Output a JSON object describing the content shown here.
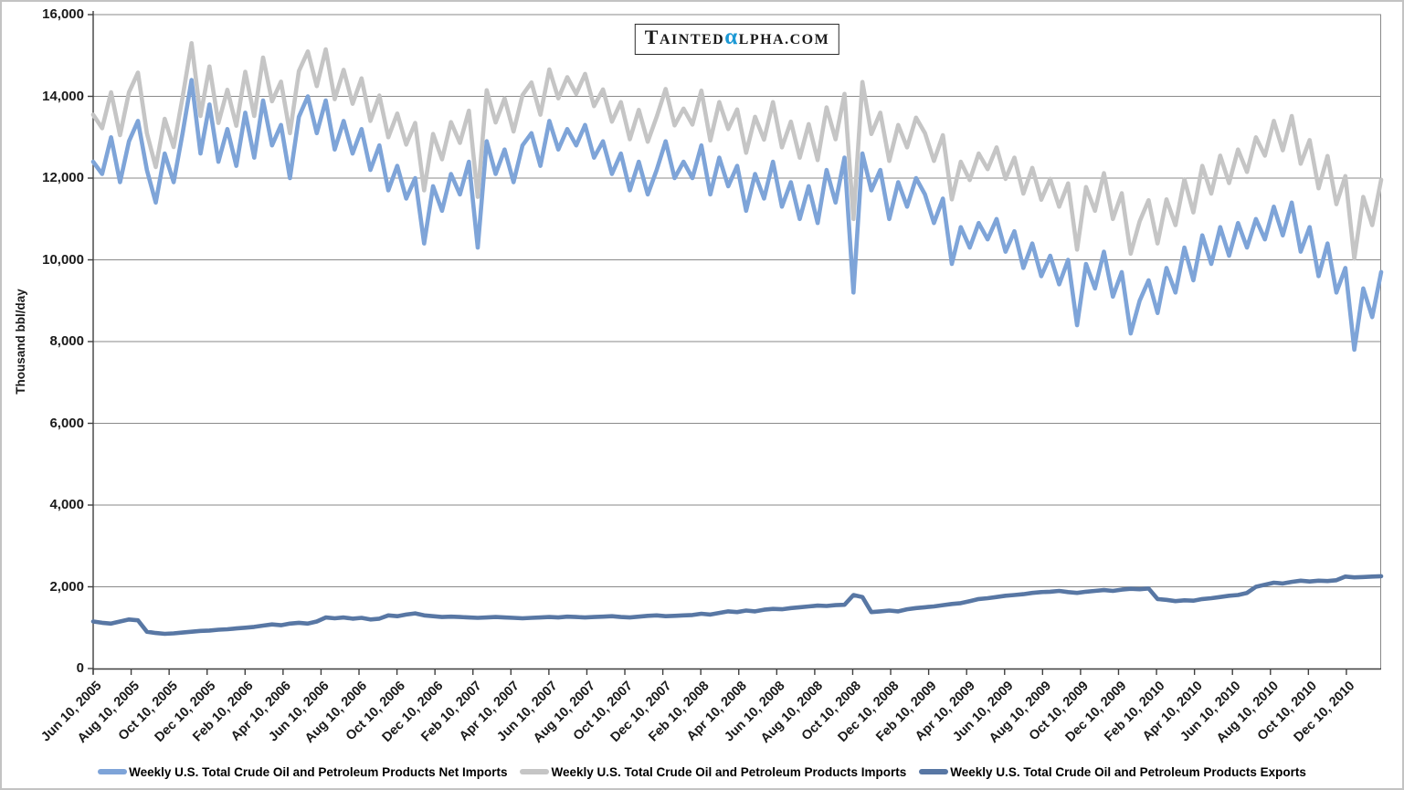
{
  "logo": {
    "first_letter": "T",
    "name_rest": "AINTED",
    "alpha": "α",
    "domain_rest": "LPHA.COM",
    "alpha_color": "#1C99D5"
  },
  "y_axis": {
    "title": "Thousand bbl/day",
    "tick_labels": [
      "0",
      "2,000",
      "4,000",
      "6,000",
      "8,000",
      "10,000",
      "12,000",
      "14,000",
      "16,000"
    ]
  },
  "x_axis": {
    "tick_labels": [
      "Jun 10, 2005",
      "Aug 10, 2005",
      "Oct 10, 2005",
      "Dec 10, 2005",
      "Feb 10, 2006",
      "Apr 10, 2006",
      "Jun 10, 2006",
      "Aug 10, 2006",
      "Oct 10, 2006",
      "Dec 10, 2006",
      "Feb 10, 2007",
      "Apr 10, 2007",
      "Jun 10, 2007",
      "Aug 10, 2007",
      "Oct 10, 2007",
      "Dec 10, 2007",
      "Feb 10, 2008",
      "Apr 10, 2008",
      "Jun 10, 2008",
      "Aug 10, 2008",
      "Oct 10, 2008",
      "Dec 10, 2008",
      "Feb 10, 2009",
      "Apr 10, 2009",
      "Jun 10, 2009",
      "Aug 10, 2009",
      "Oct 10, 2009",
      "Dec 10, 2009",
      "Feb 10, 2010",
      "Apr 10, 2010",
      "Jun 10, 2010",
      "Aug 10, 2010",
      "Oct 10, 2010",
      "Dec 10, 2010"
    ]
  },
  "chart_data": {
    "type": "line",
    "ylabel": "Thousand bbl/day",
    "ylim": [
      0,
      16000
    ],
    "y_step": 2000,
    "grid": "horizontal-only",
    "legend_position": "bottom",
    "x_range": [
      "Jun 10, 2005",
      "Dec 31, 2010"
    ],
    "sampling": "weekly data approximated at biweekly resolution, 145 points per series",
    "z_order": [
      1,
      0,
      2
    ],
    "colors": {
      "grid": "#8a8a8a",
      "axis": "#3f3f3f",
      "text": "#1a1a1a"
    },
    "series": [
      {
        "name": "Weekly U.S. Total Crude Oil and Petroleum Products Net Imports",
        "color": "#7EA4D8",
        "values": [
          12400,
          12100,
          13000,
          11900,
          12900,
          13400,
          12200,
          11400,
          12600,
          11900,
          13100,
          14400,
          12600,
          13800,
          12400,
          13200,
          12300,
          13600,
          12500,
          13900,
          12800,
          13300,
          12000,
          13500,
          14000,
          13100,
          13900,
          12700,
          13400,
          12600,
          13200,
          12200,
          12800,
          11700,
          12300,
          11500,
          12000,
          10400,
          11800,
          11200,
          12100,
          11600,
          12400,
          10300,
          12900,
          12100,
          12700,
          11900,
          12800,
          13100,
          12300,
          13400,
          12700,
          13200,
          12800,
          13300,
          12500,
          12900,
          12100,
          12600,
          11700,
          12400,
          11600,
          12200,
          12900,
          12000,
          12400,
          12000,
          12800,
          11600,
          12500,
          11800,
          12300,
          11200,
          12100,
          11500,
          12400,
          11300,
          11900,
          11000,
          11800,
          10900,
          12200,
          11400,
          12500,
          9200,
          12600,
          11700,
          12200,
          11000,
          11900,
          11300,
          12000,
          11600,
          10900,
          11500,
          9900,
          10800,
          10300,
          10900,
          10500,
          11000,
          10200,
          10700,
          9800,
          10400,
          9600,
          10100,
          9400,
          10000,
          8400,
          9900,
          9300,
          10200,
          9100,
          9700,
          8200,
          9000,
          9500,
          8700,
          9800,
          9200,
          10300,
          9500,
          10600,
          9900,
          10800,
          10100,
          10900,
          10300,
          11000,
          10500,
          11300,
          10600,
          11400,
          10200,
          10800,
          9600,
          10400,
          9200,
          9800,
          7800,
          9300,
          8600,
          9700
        ]
      },
      {
        "name": "Weekly U.S. Total Crude Oil and Petroleum Products Imports",
        "color": "#C5C5C5",
        "values": [
          13550,
          13220,
          14100,
          13050,
          14100,
          14580,
          13100,
          12270,
          13450,
          12760,
          13980,
          15300,
          13520,
          14730,
          13350,
          14160,
          13280,
          14600,
          13520,
          14950,
          13880,
          14360,
          13100,
          14620,
          15100,
          14250,
          15150,
          13930,
          14650,
          13820,
          14440,
          13400,
          14020,
          13000,
          13580,
          12820,
          13350,
          11700,
          13080,
          12460,
          13370,
          12860,
          13650,
          11540,
          14150,
          13360,
          13950,
          13140,
          14030,
          14340,
          13550,
          14660,
          13950,
          14470,
          14060,
          14550,
          13760,
          14170,
          13380,
          13860,
          12950,
          13670,
          12890,
          13500,
          14180,
          13290,
          13700,
          13310,
          14140,
          12920,
          13860,
          13200,
          13680,
          12620,
          13500,
          12940,
          13860,
          12750,
          13380,
          12500,
          13320,
          12440,
          13730,
          12950,
          14060,
          11000,
          14350,
          13080,
          13600,
          12420,
          13300,
          12750,
          13480,
          13100,
          12420,
          13050,
          11480,
          12400,
          11950,
          12600,
          12220,
          12750,
          11980,
          12500,
          11620,
          12250,
          11470,
          11980,
          11300,
          11870,
          10250,
          11780,
          11200,
          12120,
          11000,
          11630,
          10150,
          10940,
          11460,
          10400,
          11480,
          10850,
          11970,
          11160,
          12300,
          11620,
          12550,
          11880,
          12700,
          12150,
          13000,
          12550,
          13400,
          12680,
          13520,
          12350,
          12930,
          11750,
          12540,
          11360,
          12050,
          10030,
          11540,
          10850,
          11960
        ]
      },
      {
        "name": "Weekly U.S. Total Crude Oil and Petroleum Products Exports",
        "color": "#5877A4",
        "values": [
          1150,
          1120,
          1100,
          1150,
          1200,
          1180,
          900,
          870,
          850,
          860,
          880,
          900,
          920,
          930,
          950,
          960,
          980,
          1000,
          1020,
          1050,
          1080,
          1060,
          1100,
          1120,
          1100,
          1150,
          1250,
          1230,
          1250,
          1220,
          1240,
          1200,
          1220,
          1300,
          1280,
          1320,
          1350,
          1300,
          1280,
          1260,
          1270,
          1260,
          1250,
          1240,
          1250,
          1260,
          1250,
          1240,
          1230,
          1240,
          1250,
          1260,
          1250,
          1270,
          1260,
          1250,
          1260,
          1270,
          1280,
          1260,
          1250,
          1270,
          1290,
          1300,
          1280,
          1290,
          1300,
          1310,
          1340,
          1320,
          1360,
          1400,
          1380,
          1420,
          1400,
          1440,
          1460,
          1450,
          1480,
          1500,
          1520,
          1540,
          1530,
          1550,
          1560,
          1800,
          1750,
          1380,
          1400,
          1420,
          1400,
          1450,
          1480,
          1500,
          1520,
          1550,
          1580,
          1600,
          1650,
          1700,
          1720,
          1750,
          1780,
          1800,
          1820,
          1850,
          1870,
          1880,
          1900,
          1870,
          1850,
          1880,
          1900,
          1920,
          1900,
          1930,
          1950,
          1940,
          1960,
          1700,
          1680,
          1650,
          1670,
          1660,
          1700,
          1720,
          1750,
          1780,
          1800,
          1850,
          2000,
          2050,
          2100,
          2080,
          2120,
          2150,
          2130,
          2150,
          2140,
          2160,
          2250,
          2230,
          2240,
          2250,
          2260
        ]
      }
    ]
  }
}
